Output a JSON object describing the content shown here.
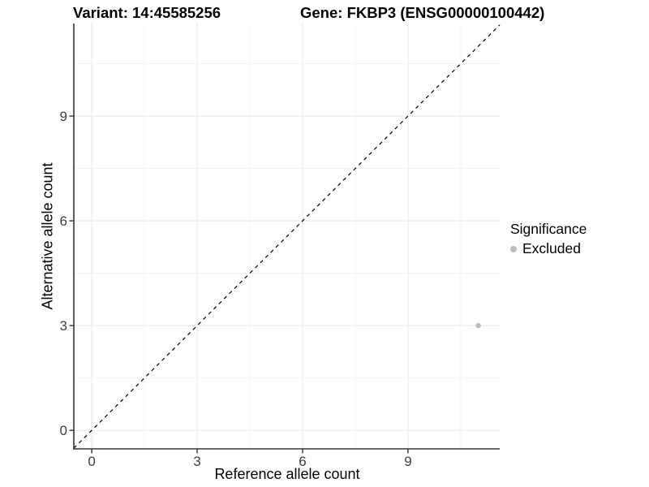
{
  "chart_data": {
    "type": "scatter",
    "title_left": "Variant: 14:45585256",
    "title_right": "Gene: FKBP3 (ENSG00000100442)",
    "xlabel": "Reference allele count",
    "ylabel": "Alternative allele count",
    "xlim": [
      -0.51,
      11.61
    ],
    "ylim": [
      -0.53,
      11.65
    ],
    "x_ticks": [
      0,
      3,
      6,
      9
    ],
    "y_ticks": [
      0,
      3,
      6,
      9
    ],
    "x_minor_ticks": [
      1.5,
      4.5,
      7.5,
      10.5
    ],
    "y_minor_ticks": [
      1.5,
      4.5,
      7.5,
      10.5
    ],
    "grid": true,
    "reference_line": {
      "equation": "y = x",
      "style": "dashed",
      "color": "#000000"
    },
    "series": [
      {
        "name": "Excluded",
        "color": "#bdbdbd",
        "points": [
          [
            11,
            3
          ]
        ]
      }
    ],
    "legend": {
      "title": "Significance",
      "position": "right",
      "items": [
        {
          "label": "Excluded",
          "color": "#bdbdbd"
        }
      ]
    },
    "colors": {
      "background": "#ffffff",
      "grid_major": "#ebebeb",
      "grid_minor": "#f5f5f5",
      "axis_line": "#333333",
      "tick_mark": "#333333",
      "tick_text": "#404040"
    }
  }
}
